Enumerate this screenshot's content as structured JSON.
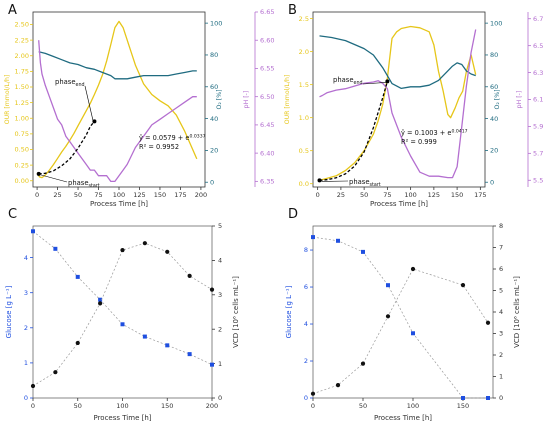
{
  "colors": {
    "our": "#e6c619",
    "o2": "#1f6b80",
    "ph": "#b46fd0",
    "glucose": "#1f4fe0",
    "vcd": "#111111",
    "fit": "#000000"
  },
  "chart_data": [
    {
      "panel": "A",
      "type": "line",
      "xlabel": "Process Time [h]",
      "xlim": [
        -5,
        205
      ],
      "xticks": [
        0,
        25,
        50,
        75,
        100,
        125,
        150,
        175,
        200
      ],
      "y_left": {
        "label": "OUR [mmol/L/h]",
        "lim": [
          -0.1,
          2.7
        ],
        "ticks": [
          "0.00",
          "0.25",
          "0.50",
          "0.75",
          "1.00",
          "1.25",
          "1.50",
          "1.75",
          "2.00",
          "2.25",
          "2.50"
        ]
      },
      "y_mid": {
        "label": "O₂ [%]",
        "lim": [
          -3,
          107
        ],
        "ticks": [
          "0",
          "20",
          "40",
          "60",
          "80",
          "100"
        ]
      },
      "y_right": {
        "label": "pH [-]",
        "lim": [
          6.34,
          6.65
        ],
        "ticks": [
          "6.35",
          "6.40",
          "6.45",
          "6.50",
          "6.55",
          "6.60",
          "6.65"
        ]
      },
      "series": [
        {
          "axis": "left",
          "color_key": "our",
          "points": [
            [
              0,
              0.12
            ],
            [
              3,
              0.06
            ],
            [
              6,
              0.05
            ],
            [
              10,
              0.09
            ],
            [
              15,
              0.17
            ],
            [
              20,
              0.26
            ],
            [
              25,
              0.36
            ],
            [
              30,
              0.46
            ],
            [
              35,
              0.55
            ],
            [
              40,
              0.65
            ],
            [
              45,
              0.76
            ],
            [
              50,
              0.88
            ],
            [
              55,
              1.0
            ],
            [
              60,
              1.12
            ],
            [
              65,
              1.24
            ],
            [
              70,
              1.38
            ],
            [
              75,
              1.53
            ],
            [
              80,
              1.7
            ],
            [
              85,
              1.92
            ],
            [
              90,
              2.18
            ],
            [
              95,
              2.45
            ],
            [
              100,
              2.55
            ],
            [
              105,
              2.45
            ],
            [
              110,
              2.25
            ],
            [
              115,
              2.05
            ],
            [
              120,
              1.85
            ],
            [
              125,
              1.7
            ],
            [
              130,
              1.55
            ],
            [
              140,
              1.38
            ],
            [
              150,
              1.28
            ],
            [
              160,
              1.2
            ],
            [
              170,
              1.05
            ],
            [
              180,
              0.8
            ],
            [
              190,
              0.5
            ],
            [
              195,
              0.35
            ]
          ]
        },
        {
          "axis": "mid",
          "color_key": "o2",
          "points": [
            [
              2,
              82
            ],
            [
              10,
              81
            ],
            [
              20,
              79
            ],
            [
              30,
              77
            ],
            [
              40,
              75
            ],
            [
              50,
              74
            ],
            [
              60,
              72
            ],
            [
              70,
              71
            ],
            [
              80,
              69
            ],
            [
              90,
              67
            ],
            [
              95,
              65
            ],
            [
              100,
              65
            ],
            [
              110,
              65
            ],
            [
              120,
              66
            ],
            [
              130,
              67
            ],
            [
              140,
              67
            ],
            [
              150,
              67
            ],
            [
              160,
              67
            ],
            [
              170,
              68
            ],
            [
              180,
              69
            ],
            [
              190,
              70
            ],
            [
              195,
              70
            ]
          ]
        },
        {
          "axis": "right",
          "color_key": "ph",
          "points": [
            [
              2,
              6.6
            ],
            [
              4,
              6.56
            ],
            [
              6,
              6.54
            ],
            [
              10,
              6.52
            ],
            [
              15,
              6.5
            ],
            [
              20,
              6.48
            ],
            [
              25,
              6.46
            ],
            [
              30,
              6.45
            ],
            [
              35,
              6.43
            ],
            [
              40,
              6.42
            ],
            [
              45,
              6.41
            ],
            [
              50,
              6.4
            ],
            [
              55,
              6.39
            ],
            [
              60,
              6.38
            ],
            [
              65,
              6.37
            ],
            [
              70,
              6.37
            ],
            [
              75,
              6.36
            ],
            [
              80,
              6.36
            ],
            [
              85,
              6.36
            ],
            [
              90,
              6.35
            ],
            [
              95,
              6.35
            ],
            [
              100,
              6.36
            ],
            [
              105,
              6.37
            ],
            [
              110,
              6.38
            ],
            [
              120,
              6.41
            ],
            [
              130,
              6.43
            ],
            [
              140,
              6.45
            ],
            [
              150,
              6.46
            ],
            [
              160,
              6.47
            ],
            [
              170,
              6.48
            ],
            [
              180,
              6.49
            ],
            [
              190,
              6.5
            ],
            [
              195,
              6.5
            ]
          ]
        }
      ],
      "fit": {
        "points": [
          [
            2,
            0.11
          ],
          [
            10,
            0.12
          ],
          [
            20,
            0.16
          ],
          [
            30,
            0.24
          ],
          [
            40,
            0.35
          ],
          [
            50,
            0.52
          ],
          [
            60,
            0.73
          ],
          [
            65,
            0.87
          ],
          [
            70,
            0.95
          ]
        ],
        "equation": "ŷ = 0.0579 + e^0.0337",
        "r2": "R² = 0.9952",
        "phase_end": "phase_end",
        "phase_start": "phase_start"
      }
    },
    {
      "panel": "B",
      "type": "line",
      "xlabel": "Process Time [h]",
      "xlim": [
        -5,
        180
      ],
      "xticks": [
        0,
        25,
        50,
        75,
        100,
        125,
        150,
        175
      ],
      "y_left": {
        "label": "OUR [mmol/L/h]",
        "lim": [
          -0.05,
          2.6
        ],
        "ticks": [
          "0.0",
          "0.5",
          "1.0",
          "1.5",
          "2.0",
          "2.5"
        ]
      },
      "y_mid": {
        "label": "O₂ [%]",
        "lim": [
          -3,
          107
        ],
        "ticks": [
          "0",
          "20",
          "40",
          "60",
          "80",
          "100"
        ]
      },
      "y_right": {
        "label": "pH [-]",
        "lim": [
          5.45,
          6.75
        ],
        "ticks": [
          "5.5",
          "5.7",
          "5.9",
          "6.1",
          "6.3",
          "6.5",
          "6.7"
        ]
      },
      "series": [
        {
          "axis": "left",
          "color_key": "our",
          "points": [
            [
              2,
              0.05
            ],
            [
              10,
              0.08
            ],
            [
              20,
              0.12
            ],
            [
              30,
              0.2
            ],
            [
              40,
              0.32
            ],
            [
              50,
              0.5
            ],
            [
              60,
              0.75
            ],
            [
              65,
              0.95
            ],
            [
              70,
              1.2
            ],
            [
              75,
              1.6
            ],
            [
              80,
              2.2
            ],
            [
              85,
              2.3
            ],
            [
              90,
              2.35
            ],
            [
              100,
              2.38
            ],
            [
              110,
              2.36
            ],
            [
              120,
              2.3
            ],
            [
              125,
              2.1
            ],
            [
              130,
              1.7
            ],
            [
              135,
              1.4
            ],
            [
              140,
              1.05
            ],
            [
              143,
              1.0
            ],
            [
              148,
              1.15
            ],
            [
              152,
              1.3
            ],
            [
              156,
              1.4
            ],
            [
              160,
              1.7
            ],
            [
              165,
              1.95
            ],
            [
              170,
              1.65
            ]
          ]
        },
        {
          "axis": "mid",
          "color_key": "o2",
          "points": [
            [
              2,
              92
            ],
            [
              15,
              91
            ],
            [
              30,
              89
            ],
            [
              50,
              84
            ],
            [
              60,
              80
            ],
            [
              70,
              72
            ],
            [
              80,
              62
            ],
            [
              90,
              59
            ],
            [
              100,
              60
            ],
            [
              110,
              60
            ],
            [
              120,
              61
            ],
            [
              130,
              64
            ],
            [
              140,
              70
            ],
            [
              145,
              73
            ],
            [
              150,
              75
            ],
            [
              155,
              74
            ],
            [
              160,
              70
            ],
            [
              165,
              68
            ],
            [
              170,
              67
            ]
          ]
        },
        {
          "axis": "right",
          "color_key": "ph",
          "points": [
            [
              2,
              6.12
            ],
            [
              5,
              6.13
            ],
            [
              10,
              6.15
            ],
            [
              20,
              6.17
            ],
            [
              30,
              6.18
            ],
            [
              40,
              6.2
            ],
            [
              50,
              6.22
            ],
            [
              60,
              6.23
            ],
            [
              65,
              6.24
            ],
            [
              70,
              6.22
            ],
            [
              75,
              6.18
            ],
            [
              80,
              6.0
            ],
            [
              90,
              5.82
            ],
            [
              100,
              5.68
            ],
            [
              110,
              5.56
            ],
            [
              120,
              5.53
            ],
            [
              130,
              5.53
            ],
            [
              140,
              5.52
            ],
            [
              145,
              5.52
            ],
            [
              150,
              5.6
            ],
            [
              155,
              5.9
            ],
            [
              160,
              6.2
            ],
            [
              165,
              6.45
            ],
            [
              170,
              6.62
            ]
          ]
        }
      ],
      "fit": {
        "points": [
          [
            2,
            0.05
          ],
          [
            10,
            0.06
          ],
          [
            20,
            0.09
          ],
          [
            30,
            0.15
          ],
          [
            40,
            0.27
          ],
          [
            50,
            0.48
          ],
          [
            60,
            0.85
          ],
          [
            70,
            1.3
          ],
          [
            75,
            1.55
          ]
        ],
        "equation": "ŷ = 0.1003 + e^0.0417",
        "r2": "R² = 0.999",
        "phase_end": "phase_end",
        "phase_start": "phase_start"
      }
    },
    {
      "panel": "C",
      "type": "scatter",
      "xlabel": "Process Time [h]",
      "xlim": [
        0,
        200
      ],
      "xticks": [
        0,
        50,
        100,
        150,
        200
      ],
      "y_left": {
        "label": "Glucose [g L⁻¹]",
        "lim": [
          0,
          4.9
        ],
        "ticks": [
          "0",
          "1",
          "2",
          "3",
          "4"
        ]
      },
      "y_right": {
        "label": "VCD [10⁶ cells mL⁻¹]",
        "lim": [
          0,
          5.0
        ],
        "ticks": [
          "0",
          "1",
          "2",
          "3",
          "4",
          "5"
        ]
      },
      "glucose": {
        "x": [
          0,
          25,
          50,
          75,
          100,
          125,
          150,
          175,
          200
        ],
        "y": [
          4.75,
          4.25,
          3.45,
          2.8,
          2.1,
          1.75,
          1.5,
          1.25,
          0.95
        ]
      },
      "vcd": {
        "x": [
          0,
          25,
          50,
          75,
          100,
          125,
          150,
          175,
          200
        ],
        "y": [
          0.35,
          0.75,
          1.6,
          2.75,
          4.3,
          4.5,
          4.25,
          3.55,
          3.15
        ]
      }
    },
    {
      "panel": "D",
      "type": "scatter",
      "xlabel": "Process Time [h]",
      "xlim": [
        0,
        180
      ],
      "xticks": [
        0,
        50,
        100,
        150
      ],
      "y_left": {
        "label": "Glucose [g L⁻¹]",
        "lim": [
          0,
          9.3
        ],
        "ticks": [
          "0",
          "2",
          "4",
          "6",
          "8"
        ]
      },
      "y_right": {
        "label": "VCD [10⁶ cells mL⁻¹]",
        "lim": [
          0,
          8.0
        ],
        "ticks": [
          "0",
          "1",
          "2",
          "3",
          "4",
          "5",
          "6",
          "7",
          "8"
        ]
      },
      "glucose": {
        "x": [
          0,
          25,
          50,
          75,
          100,
          150,
          175
        ],
        "y": [
          8.7,
          8.5,
          7.9,
          6.1,
          3.5,
          0.0,
          0.0
        ]
      },
      "vcd": {
        "x": [
          0,
          25,
          50,
          75,
          100,
          150,
          175
        ],
        "y": [
          0.2,
          0.6,
          1.6,
          3.8,
          6.0,
          5.25,
          3.5
        ]
      }
    }
  ]
}
